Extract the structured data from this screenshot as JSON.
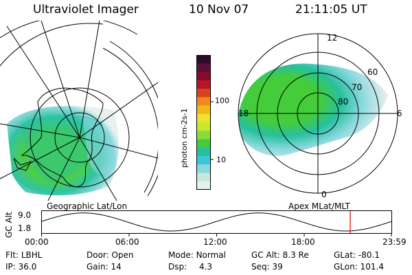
{
  "header": {
    "title": "Ultraviolet Imager",
    "date": "10 Nov 07",
    "time": "21:11:05 UT"
  },
  "left_panel": {
    "label": "Geographic Lat/Lon"
  },
  "right_panel": {
    "label": "Apex  MLat/MLT",
    "mlt_labels": {
      "top": "12",
      "left": "18",
      "right": "6",
      "bottom": "0"
    },
    "lat_labels": [
      "60",
      "70",
      "80"
    ]
  },
  "colorbar": {
    "unit": "photon cm-2s-1",
    "ticks": [
      "100",
      "10"
    ],
    "colors": [
      "#2b0a2e",
      "#5a0f3a",
      "#8a0a2a",
      "#b8152a",
      "#d8431e",
      "#f08a1a",
      "#f2b81a",
      "#ece230",
      "#c6ea2a",
      "#8bdc3a",
      "#44cc3a",
      "#27c09e",
      "#3ac8d8",
      "#88d8dc",
      "#c8e6e2",
      "#e8f0ee"
    ]
  },
  "altitude_plot": {
    "ylabel": "GC Alt",
    "yticks": [
      "9.0",
      "1.8"
    ],
    "xticks": [
      "00:00",
      "06:00",
      "12:00",
      "18:00",
      "23:59"
    ],
    "marker_hour": 21.18,
    "marker_color": "#e00000"
  },
  "info": {
    "flt": {
      "label": "Flt:",
      "value": "LBHL"
    },
    "door": {
      "label": "Door:",
      "value": "Open"
    },
    "mode": {
      "label": "Mode:",
      "value": "Normal"
    },
    "gcalt": {
      "label": "GC Alt:",
      "value": "8.3 Re"
    },
    "glat": {
      "label": "GLat:",
      "value": "-80.1"
    },
    "ip": {
      "label": "IP:",
      "value": "36.0"
    },
    "gain": {
      "label": "Gain:",
      "value": "14"
    },
    "dsp": {
      "label": "Dsp:",
      "value": "4.3"
    },
    "seq": {
      "label": "Seq:",
      "value": "39"
    },
    "glon": {
      "label": "GLon:",
      "value": "101.4"
    }
  }
}
